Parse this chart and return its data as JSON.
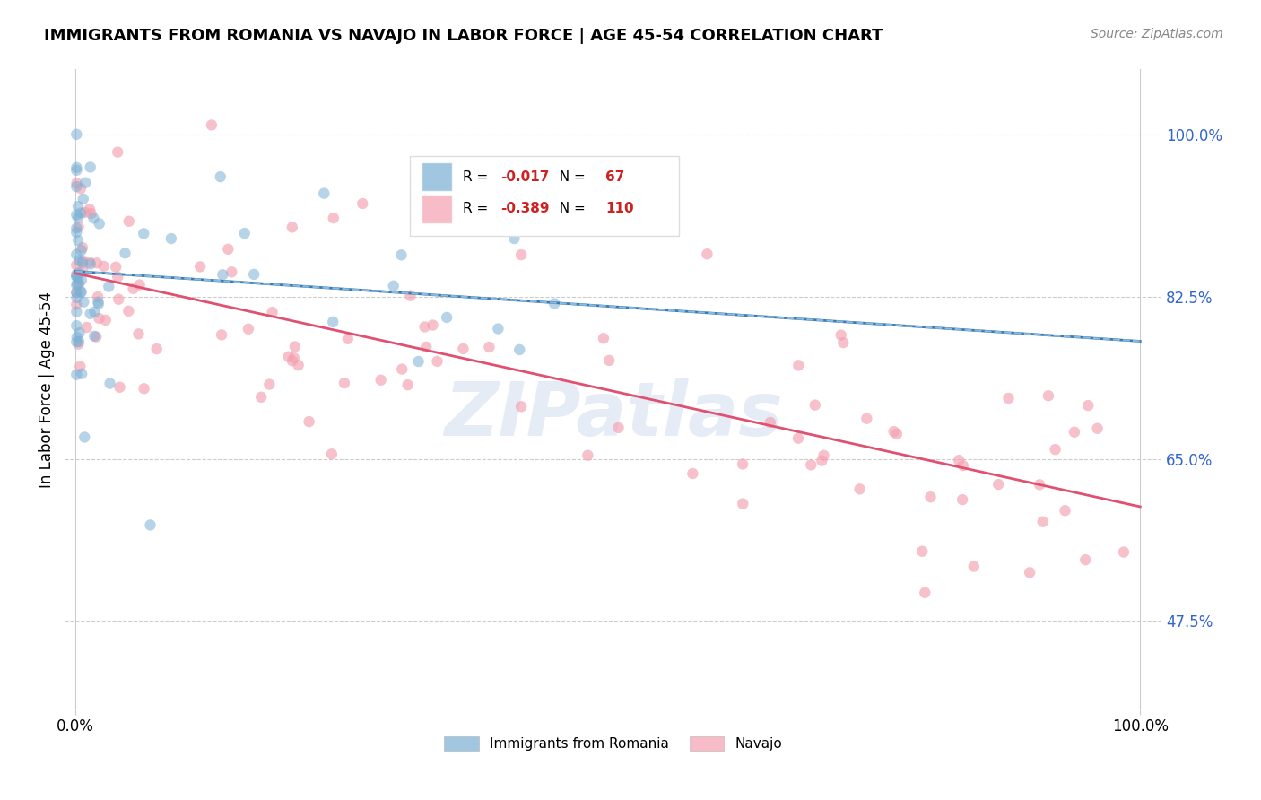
{
  "title": "IMMIGRANTS FROM ROMANIA VS NAVAJO IN LABOR FORCE | AGE 45-54 CORRELATION CHART",
  "source": "Source: ZipAtlas.com",
  "ylabel": "In Labor Force | Age 45-54",
  "xlim": [
    0.0,
    1.0
  ],
  "ylim_min": 0.38,
  "ylim_max": 1.07,
  "ytick_vals": [
    0.475,
    0.65,
    0.825,
    1.0
  ],
  "ytick_labels": [
    "47.5%",
    "65.0%",
    "82.5%",
    "100.0%"
  ],
  "xtick_vals": [
    0.0,
    1.0
  ],
  "xtick_labels": [
    "0.0%",
    "100.0%"
  ],
  "grid_color": "#cccccc",
  "bg_color": "#ffffff",
  "romania_color": "#7ab0d4",
  "navajo_color": "#f4a0b0",
  "romania_line_color": "#3d7ab5",
  "navajo_line_color": "#e05070",
  "romania_R": -0.017,
  "romania_N": 67,
  "navajo_R": -0.389,
  "navajo_N": 110,
  "watermark": "ZIPatlas",
  "legend_label_romania": "Immigrants from Romania",
  "legend_label_navajo": "Navajo",
  "legend_R_color": "#cc2222",
  "legend_N_color": "#cc2222",
  "ytick_label_color": "#3366cc",
  "xtick_label_color": "#000000",
  "title_fontsize": 13,
  "source_fontsize": 10,
  "axis_label_fontsize": 12,
  "tick_fontsize": 12,
  "legend_fontsize": 12,
  "marker_size": 80,
  "marker_alpha": 0.55,
  "line_width": 2.0
}
